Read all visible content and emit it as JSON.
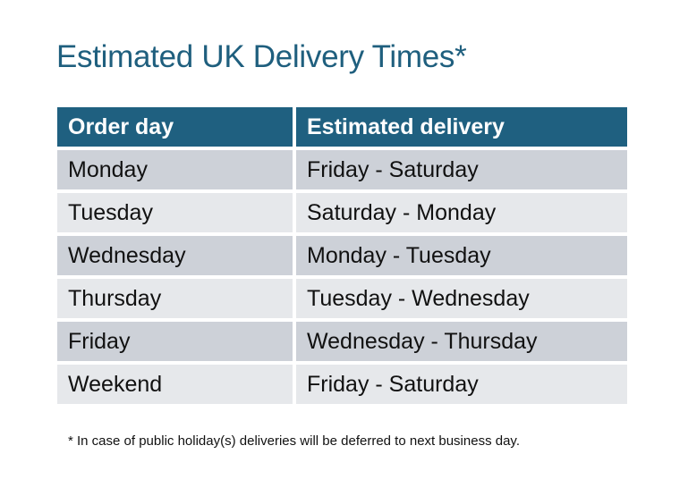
{
  "title": "Estimated UK Delivery Times*",
  "table": {
    "headers": [
      "Order day",
      "Estimated delivery"
    ],
    "rows": [
      [
        "Monday",
        "Friday - Saturday"
      ],
      [
        "Tuesday",
        "Saturday - Monday"
      ],
      [
        "Wednesday",
        "Monday - Tuesday"
      ],
      [
        "Thursday",
        "Tuesday - Wednesday"
      ],
      [
        "Friday",
        "Wednesday - Thursday"
      ],
      [
        "Weekend",
        "Friday - Saturday"
      ]
    ]
  },
  "footnote": "* In case of public holiday(s) deliveries will be deferred to next business day.",
  "colors": {
    "header": "#1f6080",
    "row_dark": "#cdd1d8",
    "row_light": "#e6e8eb",
    "title": "#1f5f7e"
  }
}
